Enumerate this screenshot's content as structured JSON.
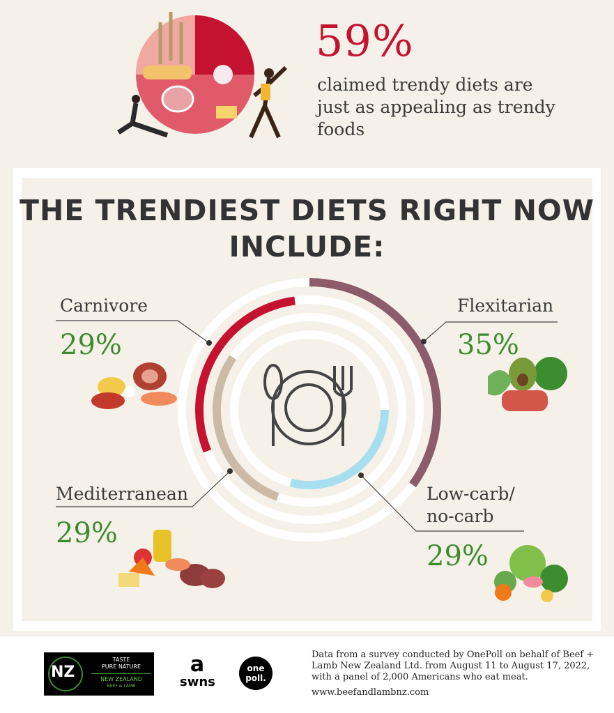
{
  "headline": {
    "percent": "59%",
    "text": "claimed trendy diets are just as appealing as trendy foods"
  },
  "title": "THE TRENDIEST DIETS RIGHT NOW INCLUDE:",
  "chart_data": {
    "type": "radial-bar",
    "title": "THE TRENDIEST DIETS RIGHT NOW INCLUDE:",
    "unit": "%",
    "categories": [
      "Flexitarian",
      "Carnivore",
      "Mediterranean",
      "Low-carb/ no-carb"
    ],
    "values": [
      35,
      29,
      29,
      29
    ],
    "value_labels": [
      "35%",
      "29%",
      "29%",
      "29%"
    ],
    "colors": [
      "#8c5c6b",
      "#c41230",
      "#cbbba6",
      "#a8dff0"
    ]
  },
  "diets": [
    {
      "label": "Carnivore",
      "value": "29%"
    },
    {
      "label": "Flexitarian",
      "value": "35%"
    },
    {
      "label": "Mediterranean",
      "value": "29%"
    },
    {
      "label": "Low-carb/ no-carb",
      "value": "29%"
    }
  ],
  "footer": {
    "text": "Data from a survey conducted by OnePoll on behalf of Beef + Lamb New Zealand Ltd. from August 11 to August 17, 2022, with a panel of 2,000 Americans who eat meat.",
    "url": "www.beefandlambnz.com",
    "logos": {
      "nz_mark": "NZ",
      "nz_line1": "TASTE",
      "nz_line2": "PURE NATURE",
      "nz_line3": "NEW ZEALAND",
      "nz_line4": "BEEF & LAMB",
      "swns_mark": "a",
      "swns_text": "swns",
      "onepoll_text": "one poll."
    }
  }
}
